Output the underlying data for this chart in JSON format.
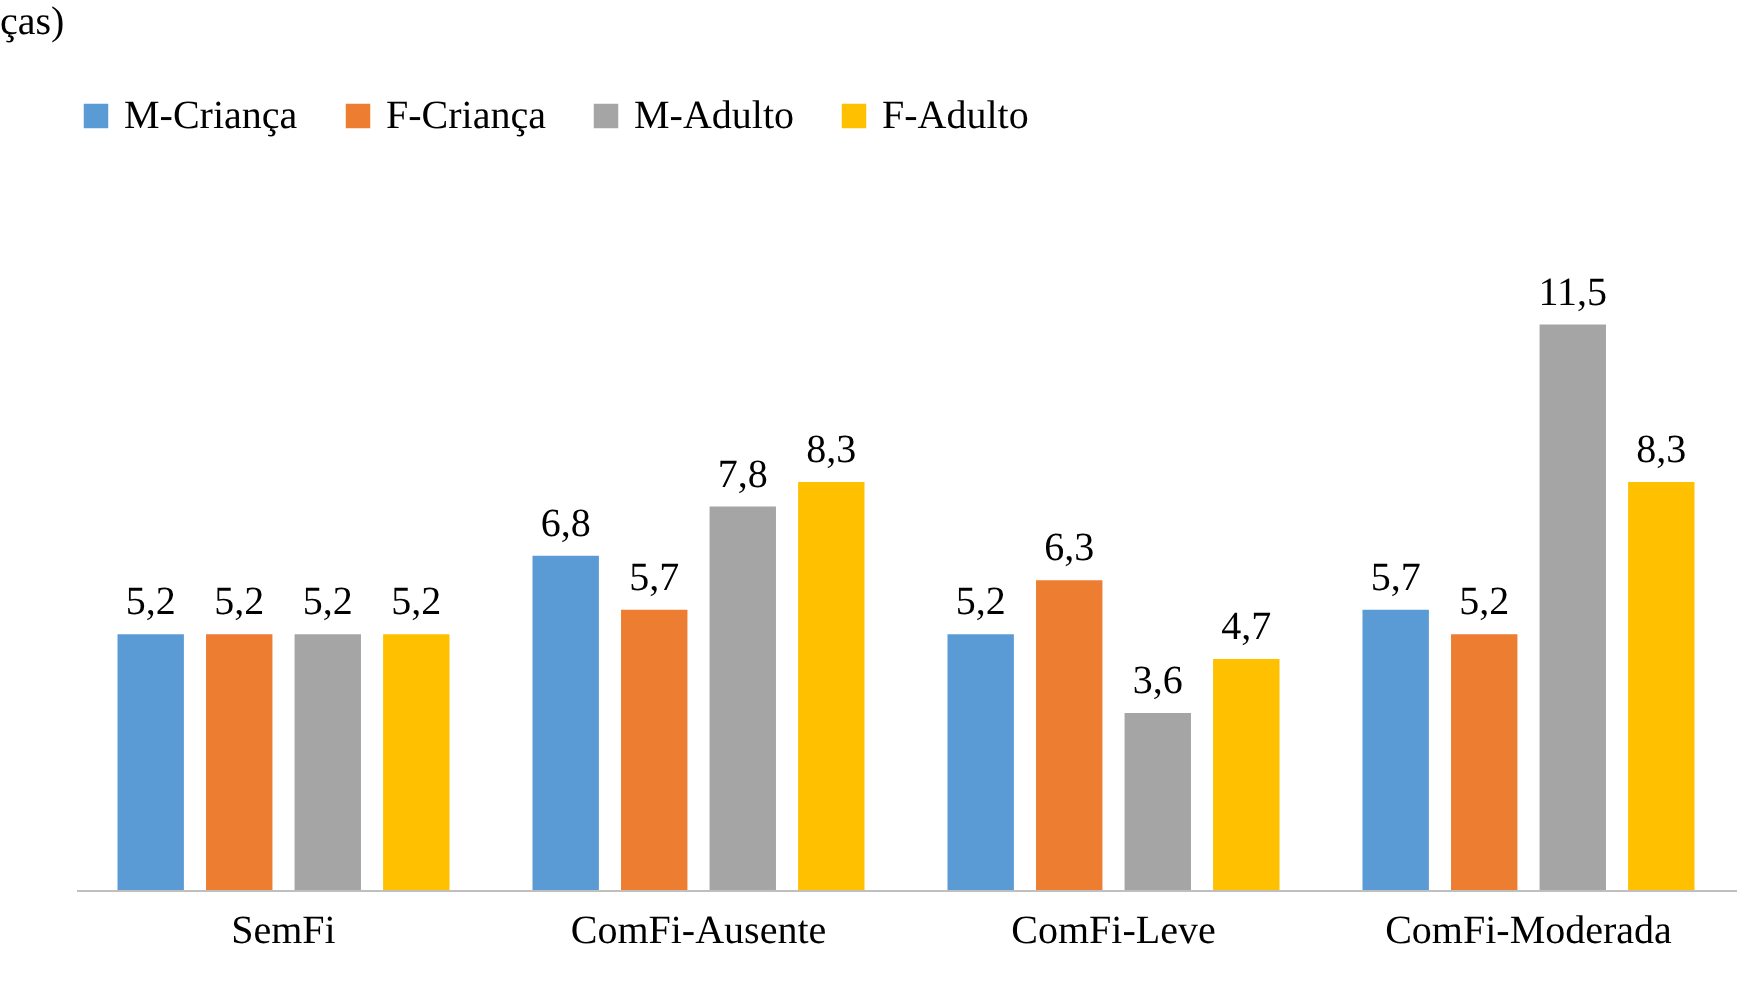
{
  "chart_data": {
    "type": "bar",
    "annotations": [
      "ças)"
    ],
    "categories": [
      "SemFi",
      "ComFi-Ausente",
      "ComFi-Leve",
      "ComFi-Moderada"
    ],
    "series": [
      {
        "name": "M-Criança",
        "color": "#5b9bd5",
        "values": [
          5.2,
          6.8,
          5.2,
          5.7
        ],
        "value_labels": [
          "5,2",
          "6,8",
          "5,2",
          "5,7"
        ]
      },
      {
        "name": "F-Criança",
        "color": "#ed7d31",
        "values": [
          5.2,
          5.7,
          6.3,
          5.2
        ],
        "value_labels": [
          "5,2",
          "5,7",
          "6,3",
          "5,2"
        ]
      },
      {
        "name": "M-Adulto",
        "color": "#a5a5a5",
        "values": [
          5.2,
          7.8,
          3.6,
          11.5
        ],
        "value_labels": [
          "5,2",
          "7,8",
          "3,6",
          "11,5"
        ]
      },
      {
        "name": "F-Adulto",
        "color": "#ffc000",
        "values": [
          5.2,
          8.3,
          4.7,
          8.3
        ],
        "value_labels": [
          "5,2",
          "8,3",
          "4,7",
          "8,3"
        ]
      }
    ],
    "legend": "top",
    "grid": false
  }
}
